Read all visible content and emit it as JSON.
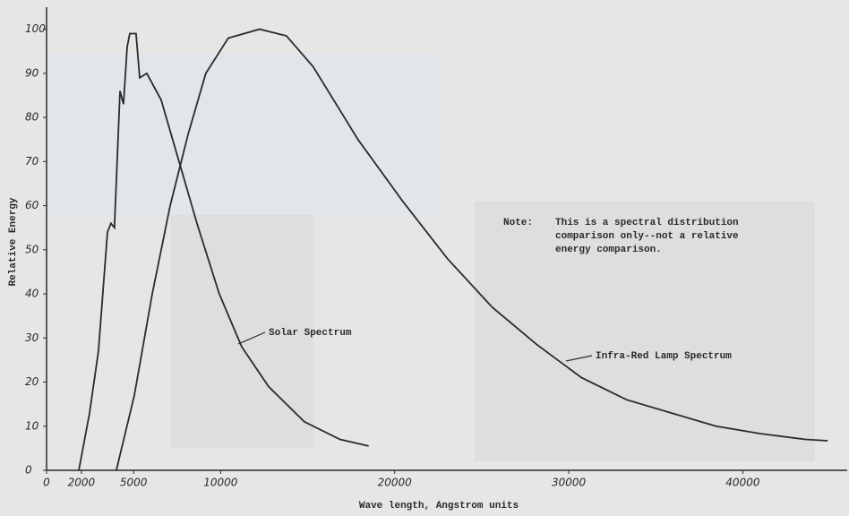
{
  "chart_data": {
    "type": "line",
    "xlabel": "Wave length,  Angstrom units",
    "ylabel": "Relative Energy",
    "note": {
      "label": "Note:",
      "lines": [
        "This is a spectral distribution",
        "comparison only--not a relative",
        "energy comparison."
      ]
    },
    "xlim": [
      0,
      46000
    ],
    "ylim": [
      0,
      105
    ],
    "xticks": [
      0,
      2000,
      5000,
      10000,
      20000,
      30000,
      40000
    ],
    "yticks": [
      0,
      10,
      20,
      30,
      40,
      50,
      60,
      70,
      80,
      90,
      100
    ],
    "series": [
      {
        "name": "Solar Spectrum",
        "color": "#2a2a2a",
        "x": [
          1850,
          2470,
          2980,
          3500,
          3700,
          3900,
          4220,
          4420,
          4630,
          4780,
          5140,
          5350,
          5760,
          6580,
          7610,
          8640,
          9920,
          11210,
          12750,
          14810,
          16860,
          18510
        ],
        "values": [
          0,
          13,
          27,
          54,
          56,
          55,
          86,
          83,
          96,
          99,
          99,
          89,
          90,
          84,
          70,
          56,
          40,
          28,
          19,
          11,
          7,
          5.5
        ]
      },
      {
        "name": "Infra-Red Lamp Spectrum",
        "color": "#2a2a2a",
        "x": [
          4010,
          5040,
          6070,
          7100,
          8120,
          9150,
          10440,
          12240,
          13780,
          15320,
          17890,
          20460,
          23030,
          25600,
          28170,
          30740,
          33320,
          35890,
          38460,
          41030,
          43600,
          44880
        ],
        "values": [
          0,
          17,
          40,
          60,
          76,
          90,
          98,
          100,
          98.5,
          91.5,
          75,
          61,
          48,
          37,
          28.5,
          21,
          16,
          13,
          10,
          8.3,
          7,
          6.7
        ]
      }
    ]
  }
}
